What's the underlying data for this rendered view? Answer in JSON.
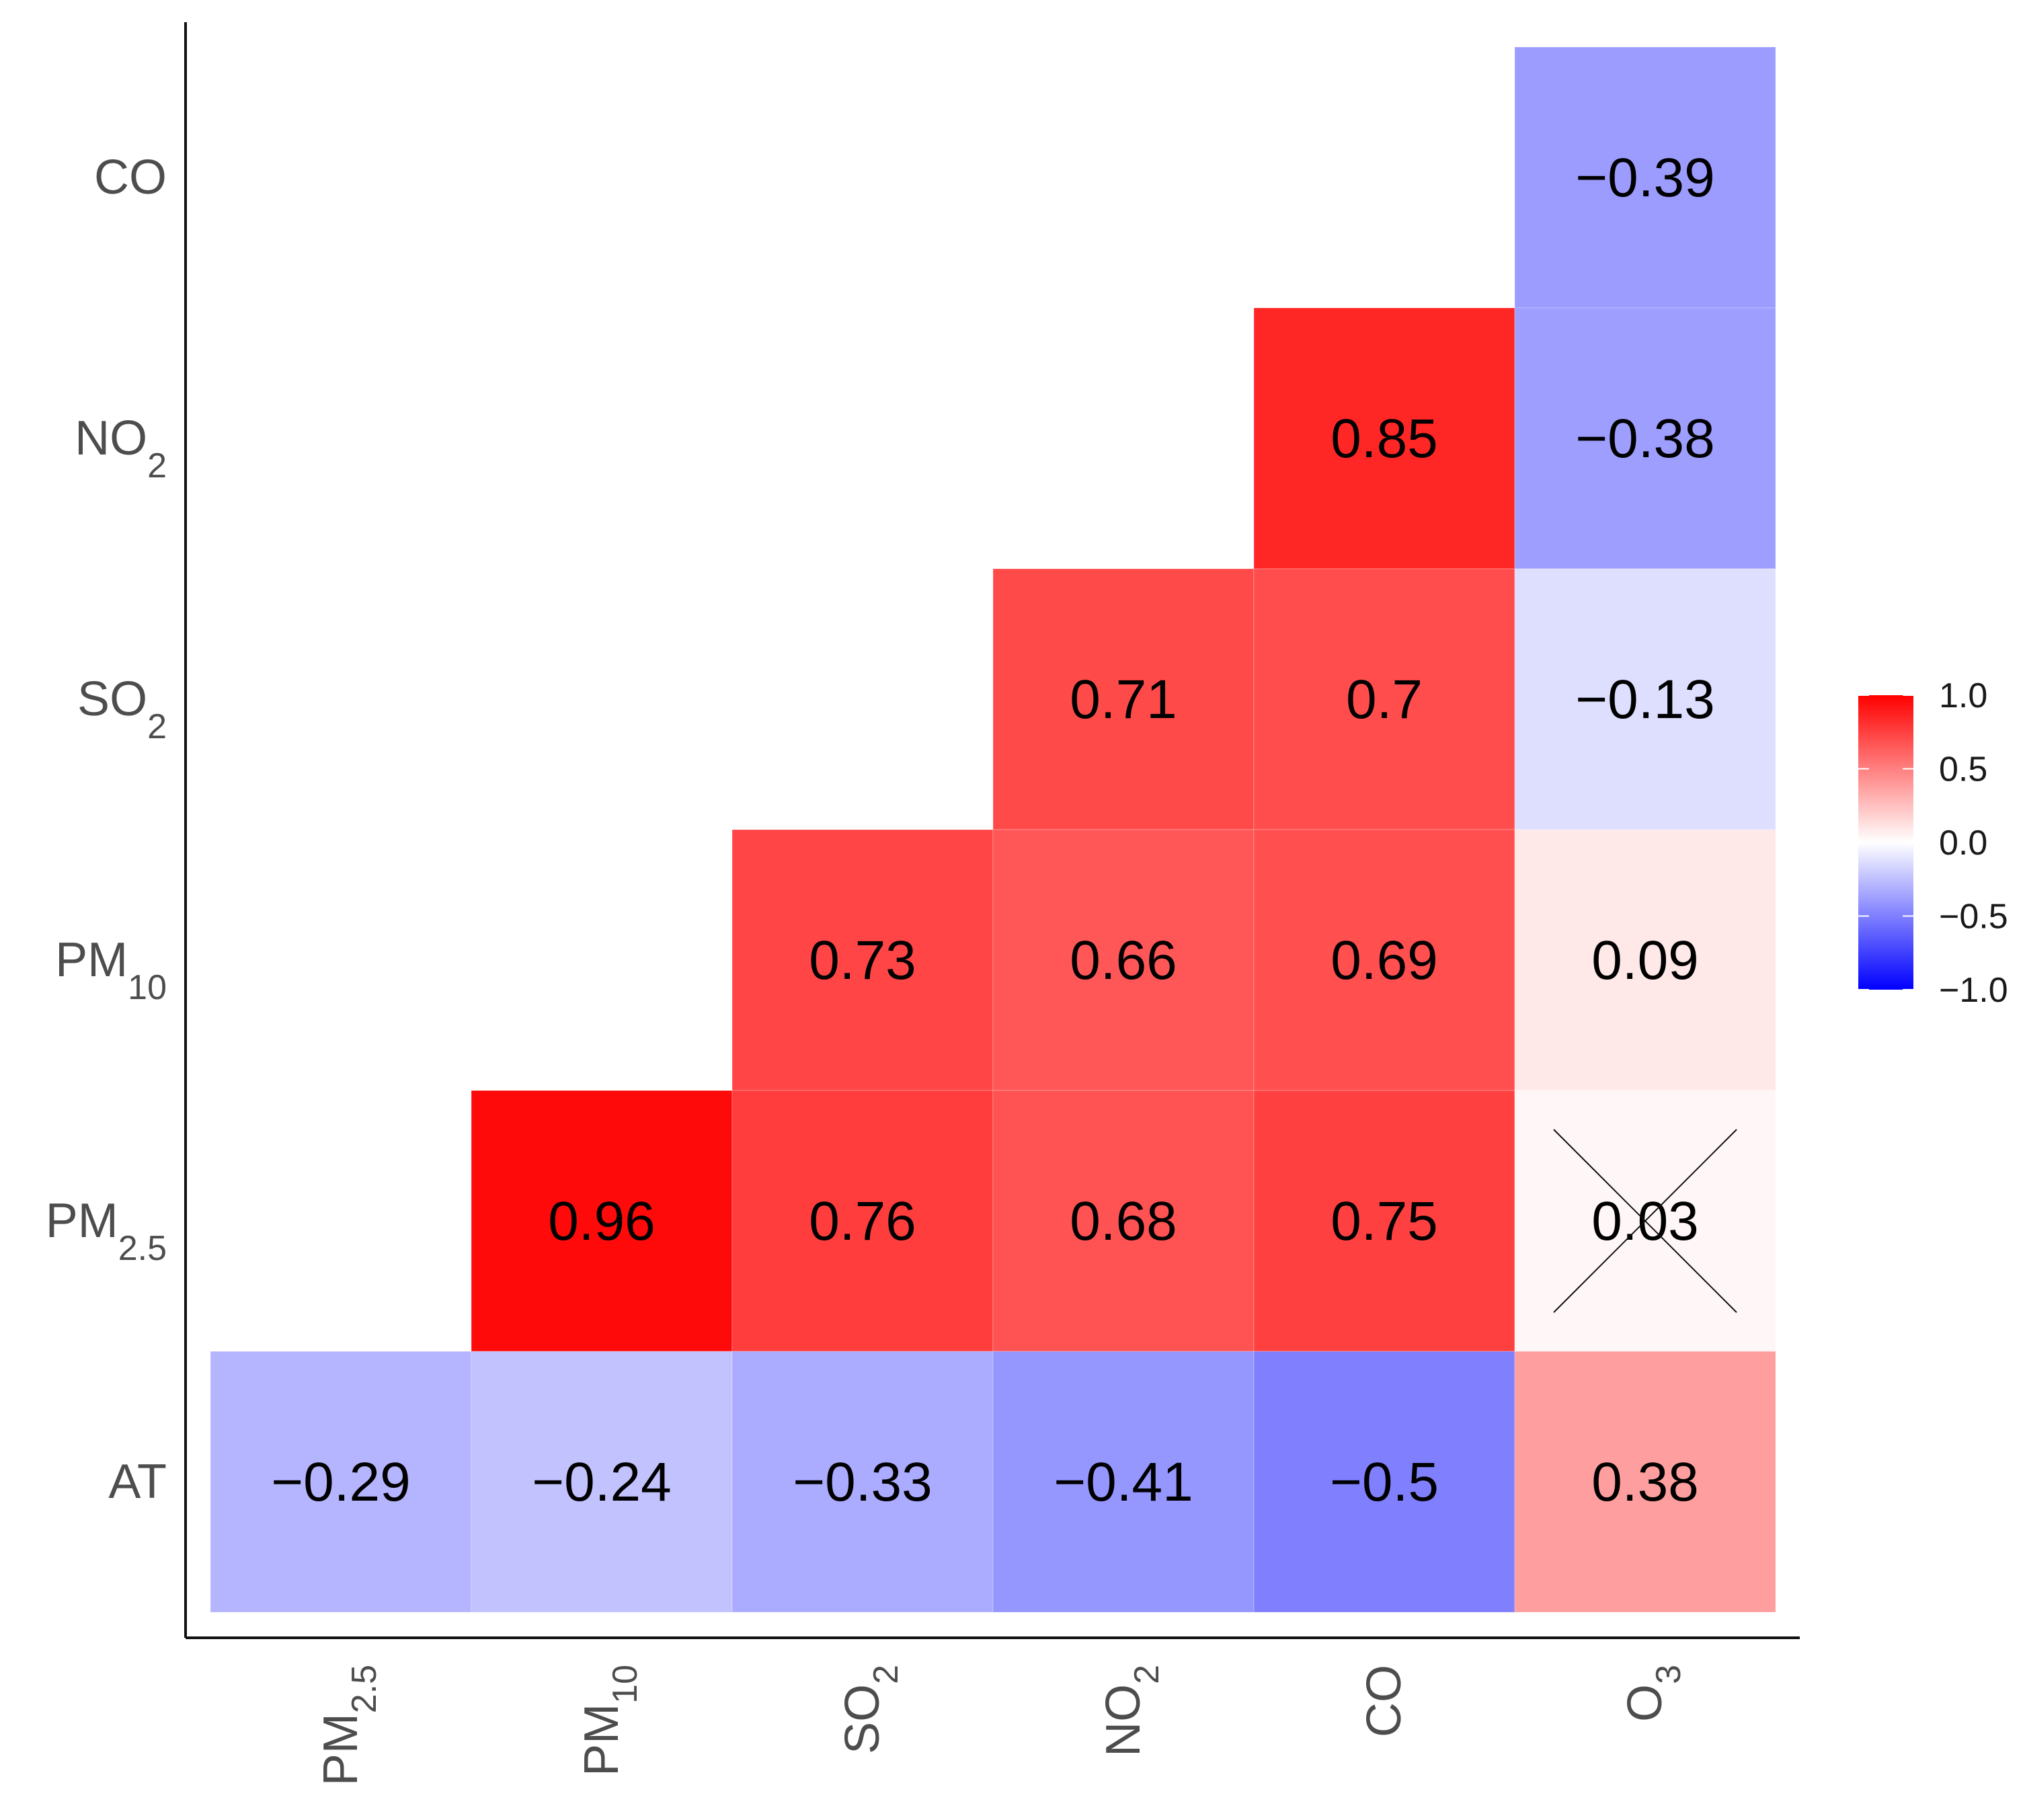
{
  "chart_data": {
    "type": "heatmap",
    "title": "",
    "xlabel": "",
    "ylabel": "",
    "x_labels": [
      {
        "base": "PM",
        "sub": "2.5"
      },
      {
        "base": "PM",
        "sub": "10"
      },
      {
        "base": "SO",
        "sub": "2"
      },
      {
        "base": "NO",
        "sub": "2"
      },
      {
        "base": "CO",
        "sub": ""
      },
      {
        "base": "O",
        "sub": "3"
      }
    ],
    "y_labels": [
      {
        "base": "CO",
        "sub": ""
      },
      {
        "base": "NO",
        "sub": "2"
      },
      {
        "base": "SO",
        "sub": "2"
      },
      {
        "base": "PM",
        "sub": "10"
      },
      {
        "base": "PM",
        "sub": "2.5"
      },
      {
        "base": "AT",
        "sub": ""
      }
    ],
    "cells": [
      {
        "row": 0,
        "col": 5,
        "value": -0.39,
        "label": "−0.39",
        "crossed": false
      },
      {
        "row": 1,
        "col": 4,
        "value": 0.85,
        "label": "0.85",
        "crossed": false
      },
      {
        "row": 1,
        "col": 5,
        "value": -0.38,
        "label": "−0.38",
        "crossed": false
      },
      {
        "row": 2,
        "col": 3,
        "value": 0.71,
        "label": "0.71",
        "crossed": false
      },
      {
        "row": 2,
        "col": 4,
        "value": 0.7,
        "label": "0.7",
        "crossed": false
      },
      {
        "row": 2,
        "col": 5,
        "value": -0.13,
        "label": "−0.13",
        "crossed": false
      },
      {
        "row": 3,
        "col": 2,
        "value": 0.73,
        "label": "0.73",
        "crossed": false
      },
      {
        "row": 3,
        "col": 3,
        "value": 0.66,
        "label": "0.66",
        "crossed": false
      },
      {
        "row": 3,
        "col": 4,
        "value": 0.69,
        "label": "0.69",
        "crossed": false
      },
      {
        "row": 3,
        "col": 5,
        "value": 0.09,
        "label": "0.09",
        "crossed": false
      },
      {
        "row": 4,
        "col": 1,
        "value": 0.96,
        "label": "0.96",
        "crossed": false
      },
      {
        "row": 4,
        "col": 2,
        "value": 0.76,
        "label": "0.76",
        "crossed": false
      },
      {
        "row": 4,
        "col": 3,
        "value": 0.68,
        "label": "0.68",
        "crossed": false
      },
      {
        "row": 4,
        "col": 4,
        "value": 0.75,
        "label": "0.75",
        "crossed": false
      },
      {
        "row": 4,
        "col": 5,
        "value": 0.03,
        "label": "0.03",
        "crossed": true
      },
      {
        "row": 5,
        "col": 0,
        "value": -0.29,
        "label": "−0.29",
        "crossed": false
      },
      {
        "row": 5,
        "col": 1,
        "value": -0.24,
        "label": "−0.24",
        "crossed": false
      },
      {
        "row": 5,
        "col": 2,
        "value": -0.33,
        "label": "−0.33",
        "crossed": false
      },
      {
        "row": 5,
        "col": 3,
        "value": -0.41,
        "label": "−0.41",
        "crossed": false
      },
      {
        "row": 5,
        "col": 4,
        "value": -0.5,
        "label": "−0.5",
        "crossed": false
      },
      {
        "row": 5,
        "col": 5,
        "value": 0.38,
        "label": "0.38",
        "crossed": false
      }
    ],
    "colorbar": {
      "min": -1.0,
      "max": 1.0,
      "low_color": "#0000ff",
      "mid_color": "#ffffff",
      "high_color": "#ff0000",
      "ticks": [
        {
          "value": 1.0,
          "label": "1.0"
        },
        {
          "value": 0.5,
          "label": "0.5"
        },
        {
          "value": 0.0,
          "label": "0.0"
        },
        {
          "value": -0.5,
          "label": "−0.5"
        },
        {
          "value": -1.0,
          "label": "−1.0"
        }
      ],
      "placement": "right"
    }
  }
}
